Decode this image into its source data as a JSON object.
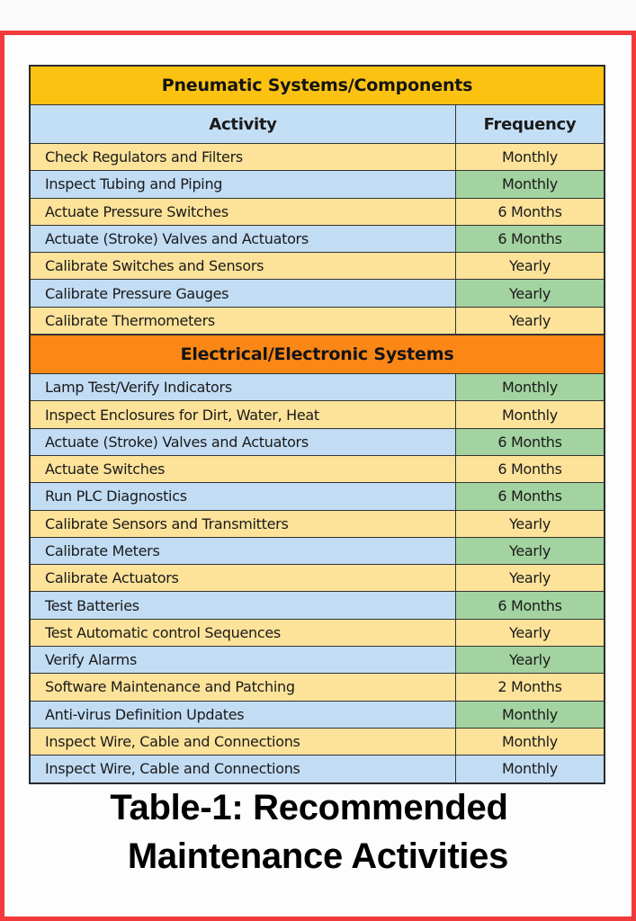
{
  "colors": {
    "frame_border": "#f23a3c",
    "pneumatic_header": "#fbc212",
    "electrical_header": "#fb8716",
    "row_yellow": "#fde39a",
    "row_blue": "#c2dcf4",
    "freq_green": "#a3d3a0"
  },
  "table": {
    "columns": {
      "activity": "Activity",
      "frequency": "Frequency"
    },
    "sections": [
      {
        "title": "Pneumatic Systems/Components",
        "rows": [
          {
            "activity": "Check Regulators and Filters",
            "frequency": "Monthly"
          },
          {
            "activity": "Inspect Tubing and Piping",
            "frequency": "Monthly"
          },
          {
            "activity": "Actuate Pressure Switches",
            "frequency": "6 Months"
          },
          {
            "activity": "Actuate (Stroke) Valves and Actuators",
            "frequency": "6 Months"
          },
          {
            "activity": "Calibrate Switches and Sensors",
            "frequency": "Yearly"
          },
          {
            "activity": "Calibrate Pressure Gauges",
            "frequency": "Yearly"
          },
          {
            "activity": "Calibrate Thermometers",
            "frequency": "Yearly"
          }
        ]
      },
      {
        "title": "Electrical/Electronic Systems",
        "rows": [
          {
            "activity": "Lamp Test/Verify Indicators",
            "frequency": "Monthly"
          },
          {
            "activity": "Inspect Enclosures for Dirt, Water, Heat",
            "frequency": "Monthly"
          },
          {
            "activity": "Actuate (Stroke) Valves and Actuators",
            "frequency": "6 Months"
          },
          {
            "activity": "Actuate Switches",
            "frequency": "6 Months"
          },
          {
            "activity": "Run PLC Diagnostics",
            "frequency": "6 Months"
          },
          {
            "activity": "Calibrate Sensors and Transmitters",
            "frequency": "Yearly"
          },
          {
            "activity": "Calibrate Meters",
            "frequency": "Yearly"
          },
          {
            "activity": "Calibrate Actuators",
            "frequency": "Yearly"
          },
          {
            "activity": "Test Batteries",
            "frequency": "6 Months"
          },
          {
            "activity": "Test Automatic control Sequences",
            "frequency": "Yearly"
          },
          {
            "activity": "Verify Alarms",
            "frequency": "Yearly"
          },
          {
            "activity": "Software Maintenance and Patching",
            "frequency": "2 Months"
          },
          {
            "activity": "Anti-virus Definition Updates",
            "frequency": "Monthly"
          },
          {
            "activity": "Inspect Wire, Cable and Connections",
            "frequency": "Monthly"
          },
          {
            "activity": "Inspect Wire, Cable and Connections",
            "frequency": "Monthly"
          }
        ]
      }
    ]
  },
  "caption": {
    "line1": "Table-1: Recommended",
    "line2": "Maintenance Activities"
  }
}
